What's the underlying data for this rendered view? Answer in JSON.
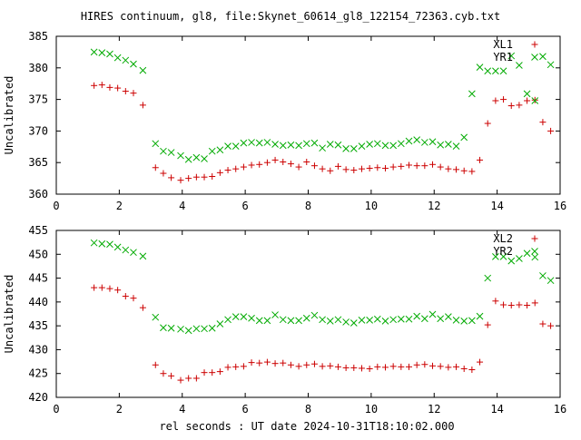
{
  "title": "HIRES continuum, gl8, file:Skynet_60614_gl8_122154_72363.cyb.txt",
  "xlabel": "rel seconds : UT date 2024-10-31T18:10:02.000",
  "colors": {
    "red": "#cc0000",
    "green": "#00aa00"
  },
  "chart_data": [
    {
      "type": "scatter",
      "ylabel": "Uncalibrated",
      "xlim": [
        0,
        16
      ],
      "ylim": [
        360,
        385
      ],
      "xticks": [
        0,
        2,
        4,
        6,
        8,
        10,
        12,
        14,
        16
      ],
      "yticks": [
        360,
        365,
        370,
        375,
        380,
        385
      ],
      "grid": false,
      "legend": "top-right",
      "series": [
        {
          "name": "XL1",
          "marker": "plus",
          "color": "#cc0000",
          "x": [
            1.2,
            1.45,
            1.7,
            1.95,
            2.2,
            2.45,
            2.75,
            3.15,
            3.4,
            3.65,
            3.95,
            4.2,
            4.45,
            4.7,
            4.95,
            5.2,
            5.45,
            5.7,
            5.95,
            6.2,
            6.45,
            6.7,
            6.95,
            7.2,
            7.45,
            7.7,
            7.95,
            8.2,
            8.45,
            8.7,
            8.95,
            9.2,
            9.45,
            9.7,
            9.95,
            10.2,
            10.45,
            10.7,
            10.95,
            11.2,
            11.45,
            11.7,
            11.95,
            12.2,
            12.45,
            12.7,
            12.95,
            13.2,
            13.45,
            13.7,
            13.95,
            14.2,
            14.45,
            14.7,
            14.95,
            15.2,
            15.45,
            15.7
          ],
          "y": [
            377.2,
            377.3,
            376.9,
            376.8,
            376.3,
            376.0,
            374.1,
            364.2,
            363.3,
            362.6,
            362.2,
            362.5,
            362.7,
            362.7,
            362.8,
            363.4,
            363.8,
            364.0,
            364.3,
            364.6,
            364.7,
            365.0,
            365.4,
            365.1,
            364.8,
            364.3,
            365.1,
            364.5,
            364.0,
            363.7,
            364.4,
            363.9,
            363.8,
            364.0,
            364.1,
            364.2,
            364.1,
            364.3,
            364.4,
            364.6,
            364.5,
            364.5,
            364.7,
            364.3,
            364.0,
            363.9,
            363.7,
            363.6,
            365.4,
            371.2,
            374.8,
            375.0,
            374.0,
            374.1,
            374.8,
            374.9,
            371.4,
            370.0
          ]
        },
        {
          "name": "YR1",
          "marker": "cross",
          "color": "#00aa00",
          "x": [
            1.2,
            1.45,
            1.7,
            1.95,
            2.2,
            2.45,
            2.75,
            3.15,
            3.4,
            3.65,
            3.95,
            4.2,
            4.45,
            4.7,
            4.95,
            5.2,
            5.45,
            5.7,
            5.95,
            6.2,
            6.45,
            6.7,
            6.95,
            7.2,
            7.45,
            7.7,
            7.95,
            8.2,
            8.45,
            8.7,
            8.95,
            9.2,
            9.45,
            9.7,
            9.95,
            10.2,
            10.45,
            10.7,
            10.95,
            11.2,
            11.45,
            11.7,
            11.95,
            12.2,
            12.45,
            12.7,
            12.95,
            13.2,
            13.45,
            13.7,
            13.95,
            14.2,
            14.45,
            14.7,
            14.95,
            15.2,
            15.45,
            15.7
          ],
          "y": [
            382.5,
            382.4,
            382.2,
            381.6,
            381.2,
            380.6,
            379.6,
            368.0,
            366.8,
            366.6,
            366.1,
            365.5,
            365.8,
            365.6,
            366.8,
            367.0,
            367.6,
            367.6,
            368.1,
            368.2,
            368.1,
            368.2,
            367.9,
            367.7,
            367.8,
            367.7,
            368.0,
            368.1,
            367.3,
            367.9,
            367.8,
            367.2,
            367.2,
            367.6,
            367.9,
            368.0,
            367.7,
            367.7,
            368.0,
            368.4,
            368.6,
            368.2,
            368.3,
            367.8,
            367.9,
            367.6,
            369.0,
            375.9,
            380.1,
            379.5,
            379.5,
            379.5,
            381.9,
            380.4,
            375.9,
            374.8,
            381.8,
            380.5
          ]
        }
      ]
    },
    {
      "type": "scatter",
      "ylabel": "Uncalibrated",
      "xlim": [
        0,
        16
      ],
      "ylim": [
        420,
        455
      ],
      "xticks": [
        0,
        2,
        4,
        6,
        8,
        10,
        12,
        14,
        16
      ],
      "yticks": [
        420,
        425,
        430,
        435,
        440,
        445,
        450,
        455
      ],
      "grid": false,
      "legend": "top-right",
      "series": [
        {
          "name": "XL2",
          "marker": "plus",
          "color": "#cc0000",
          "x": [
            1.2,
            1.45,
            1.7,
            1.95,
            2.2,
            2.45,
            2.75,
            3.15,
            3.4,
            3.65,
            3.95,
            4.2,
            4.45,
            4.7,
            4.95,
            5.2,
            5.45,
            5.7,
            5.95,
            6.2,
            6.45,
            6.7,
            6.95,
            7.2,
            7.45,
            7.7,
            7.95,
            8.2,
            8.45,
            8.7,
            8.95,
            9.2,
            9.45,
            9.7,
            9.95,
            10.2,
            10.45,
            10.7,
            10.95,
            11.2,
            11.45,
            11.7,
            11.95,
            12.2,
            12.45,
            12.7,
            12.95,
            13.2,
            13.45,
            13.7,
            13.95,
            14.2,
            14.45,
            14.7,
            14.95,
            15.2,
            15.45,
            15.7
          ],
          "y": [
            443.0,
            443.0,
            442.8,
            442.5,
            441.2,
            440.8,
            438.8,
            426.8,
            425.0,
            424.5,
            423.6,
            424.0,
            424.0,
            425.2,
            425.2,
            425.4,
            426.3,
            426.4,
            426.5,
            427.3,
            427.2,
            427.4,
            427.1,
            427.2,
            426.8,
            426.5,
            426.8,
            427.0,
            426.5,
            426.6,
            426.4,
            426.2,
            426.2,
            426.1,
            426.0,
            426.4,
            426.3,
            426.5,
            426.4,
            426.4,
            426.8,
            426.9,
            426.6,
            426.5,
            426.3,
            426.4,
            426.0,
            425.8,
            427.4,
            435.2,
            440.2,
            439.4,
            439.3,
            439.4,
            439.3,
            439.8,
            435.4,
            435.0
          ]
        },
        {
          "name": "YR2",
          "marker": "cross",
          "color": "#00aa00",
          "x": [
            1.2,
            1.45,
            1.7,
            1.95,
            2.2,
            2.45,
            2.75,
            3.15,
            3.4,
            3.65,
            3.95,
            4.2,
            4.45,
            4.7,
            4.95,
            5.2,
            5.45,
            5.7,
            5.95,
            6.2,
            6.45,
            6.7,
            6.95,
            7.2,
            7.45,
            7.7,
            7.95,
            8.2,
            8.45,
            8.7,
            8.95,
            9.2,
            9.45,
            9.7,
            9.95,
            10.2,
            10.45,
            10.7,
            10.95,
            11.2,
            11.45,
            11.7,
            11.95,
            12.2,
            12.45,
            12.7,
            12.95,
            13.2,
            13.45,
            13.7,
            13.95,
            14.2,
            14.45,
            14.7,
            14.95,
            15.2,
            15.45,
            15.7
          ],
          "y": [
            452.4,
            452.2,
            452.1,
            451.5,
            450.9,
            450.4,
            449.6,
            436.8,
            434.6,
            434.5,
            434.3,
            434.0,
            434.4,
            434.4,
            434.5,
            435.4,
            436.3,
            436.9,
            436.9,
            436.6,
            436.1,
            436.1,
            437.3,
            436.3,
            436.1,
            436.1,
            436.6,
            437.2,
            436.3,
            436.0,
            436.3,
            435.8,
            435.6,
            436.2,
            436.2,
            436.4,
            436.0,
            436.3,
            436.4,
            436.4,
            437.0,
            436.5,
            437.4,
            436.5,
            436.9,
            436.2,
            436.0,
            436.1,
            437.0,
            445.0,
            449.5,
            449.5,
            448.6,
            449.1,
            450.2,
            449.4,
            445.5,
            444.5
          ]
        }
      ]
    }
  ]
}
